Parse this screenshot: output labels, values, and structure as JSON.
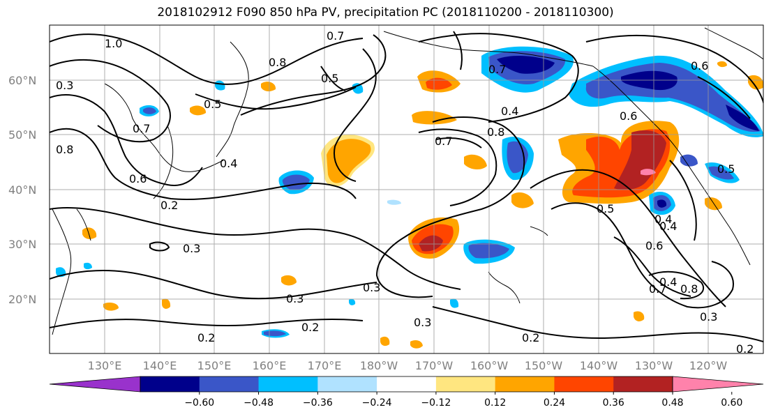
{
  "title": "2018102912 F090 850 hPa PV, precipitation PC (2018110200 - 2018110300)",
  "map": {
    "lat_ticks": [
      "60°N",
      "50°N",
      "40°N",
      "30°N",
      "20°N"
    ],
    "lon_ticks": [
      "130°E",
      "140°E",
      "150°E",
      "160°E",
      "170°E",
      "180°W",
      "170°W",
      "160°W",
      "150°W",
      "140°W",
      "130°W",
      "120°W"
    ],
    "contour_labels": [
      "1.0",
      "0.7",
      "0.5",
      "0.8",
      "0.7",
      "0.8",
      "0.6",
      "0.3",
      "0.4",
      "0.5",
      "0.6",
      "0.7",
      "0.4",
      "0.7",
      "0.8",
      "0.4",
      "0.6",
      "0.5",
      "0.4",
      "0.2",
      "0.3",
      "0.3",
      "0.3",
      "0.2",
      "0.3",
      "0.5",
      "0.4",
      "0.6",
      "0.7",
      "0.8",
      "0.3",
      "0.2",
      "0.2",
      "0.2"
    ]
  },
  "colorbar": {
    "ticks": [
      "−0.60",
      "−0.48",
      "−0.36",
      "−0.24",
      "−0.12",
      "0.12",
      "0.24",
      "0.36",
      "0.48",
      "0.60"
    ],
    "colors": [
      "#9932cc",
      "#00008b",
      "#3a56c8",
      "#00bfff",
      "#b0e2ff",
      "#ffffff",
      "#ffe680",
      "#ffa500",
      "#ff4500",
      "#b22222",
      "#ff82ab"
    ]
  }
}
